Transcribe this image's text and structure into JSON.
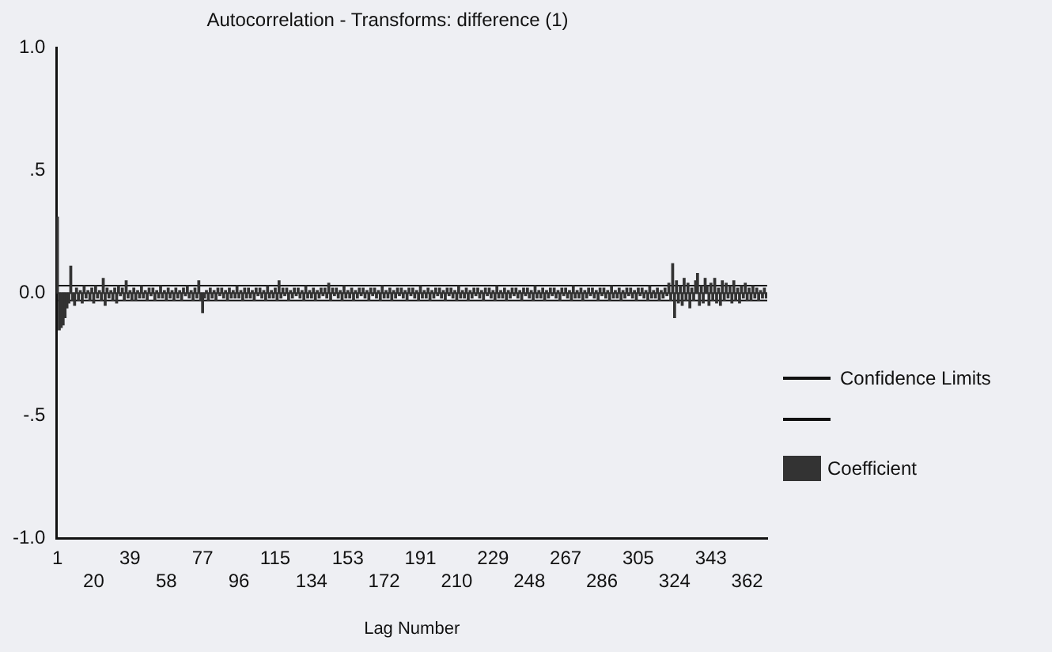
{
  "chart_data": {
    "type": "bar",
    "title": "Autocorrelation - Transforms: difference (1)",
    "xlabel": "Lag Number",
    "categories": [
      "1",
      null,
      null,
      null,
      null,
      null,
      null,
      null,
      null,
      null,
      null,
      null,
      null,
      null,
      null,
      null,
      null,
      null,
      null,
      "20",
      null,
      null,
      null,
      null,
      null,
      null,
      null,
      null,
      null,
      null,
      null,
      null,
      null,
      null,
      null,
      null,
      null,
      null,
      "39",
      null,
      null,
      null,
      null,
      null,
      null,
      null,
      null,
      null,
      null,
      null,
      null,
      null,
      null,
      null,
      null,
      null,
      null,
      "58",
      null,
      null,
      null,
      null,
      null,
      null,
      null,
      null,
      null,
      null,
      null,
      null,
      null,
      null,
      null,
      null,
      null,
      null,
      "77",
      null,
      null,
      null,
      null,
      null,
      null,
      null,
      null,
      null,
      null,
      null,
      null,
      null,
      null,
      null,
      null,
      null,
      null,
      "96",
      null,
      null,
      null,
      null,
      null,
      null,
      null,
      null,
      null,
      null,
      null,
      null,
      null,
      null,
      null,
      null,
      null,
      null,
      "115",
      null,
      null,
      null,
      null,
      null,
      null,
      null,
      null,
      null,
      null,
      null,
      null,
      null,
      null,
      null,
      null,
      null,
      null,
      "134",
      null,
      null,
      null,
      null,
      null,
      null,
      null,
      null,
      null,
      null,
      null,
      null,
      null,
      null,
      null,
      null,
      null,
      null,
      "153",
      null,
      null,
      null,
      null,
      null,
      null,
      null,
      null,
      null,
      null,
      null,
      null,
      null,
      null,
      null,
      null,
      null,
      null,
      "172",
      null,
      null,
      null,
      null,
      null,
      null,
      null,
      null,
      null,
      null,
      null,
      null,
      null,
      null,
      null,
      null,
      null,
      null,
      "191",
      null,
      null,
      null,
      null,
      null,
      null,
      null,
      null,
      null,
      null,
      null,
      null,
      null,
      null,
      null,
      null,
      null,
      null,
      "210",
      null,
      null,
      null,
      null,
      null,
      null,
      null,
      null,
      null,
      null,
      null,
      null,
      null,
      null,
      null,
      null,
      null,
      null,
      "229",
      null,
      null,
      null,
      null,
      null,
      null,
      null,
      null,
      null,
      null,
      null,
      null,
      null,
      null,
      null,
      null,
      null,
      null,
      "248",
      null,
      null,
      null,
      null,
      null,
      null,
      null,
      null,
      null,
      null,
      null,
      null,
      null,
      null,
      null,
      null,
      null,
      null,
      "267",
      null,
      null,
      null,
      null,
      null,
      null,
      null,
      null,
      null,
      null,
      null,
      null,
      null,
      null,
      null,
      null,
      null,
      null,
      "286",
      null,
      null,
      null,
      null,
      null,
      null,
      null,
      null,
      null,
      null,
      null,
      null,
      null,
      null,
      null,
      null,
      null,
      null,
      "305",
      null,
      null,
      null,
      null,
      null,
      null,
      null,
      null,
      null,
      null,
      null,
      null,
      null,
      null,
      null,
      null,
      null,
      null,
      "324",
      null,
      null,
      null,
      null,
      null,
      null,
      null,
      null,
      null,
      null,
      null,
      null,
      null,
      null,
      null,
      null,
      null,
      null,
      "343",
      null,
      null,
      null,
      null,
      null,
      null,
      null,
      null,
      null,
      null,
      null,
      null,
      null,
      null,
      null,
      null,
      null,
      null,
      "362",
      null,
      null,
      null,
      null,
      null,
      null,
      null,
      null,
      null,
      null
    ],
    "series": [
      {
        "name": "Coefficient",
        "color": "#333333",
        "values": [
          0.31,
          -0.15,
          -0.14,
          -0.13,
          -0.1,
          -0.06,
          -0.04,
          0.11,
          -0.03,
          -0.05,
          0.02,
          -0.03,
          0.01,
          -0.04,
          0.03,
          -0.02,
          0.01,
          -0.03,
          0.02,
          -0.04,
          0.03,
          -0.02,
          0.01,
          -0.03,
          0.06,
          -0.05,
          0.02,
          -0.02,
          0.01,
          -0.03,
          0.02,
          -0.04,
          0.03,
          -0.01,
          0.02,
          -0.03,
          0.05,
          -0.02,
          0.01,
          -0.03,
          0.02,
          -0.03,
          0.01,
          -0.02,
          0.03,
          -0.02,
          0.01,
          -0.03,
          0.02,
          -0.01,
          0.02,
          -0.03,
          0.01,
          -0.02,
          0.03,
          -0.02,
          0.01,
          -0.03,
          0.02,
          -0.02,
          0.01,
          -0.03,
          0.02,
          -0.02,
          0.01,
          -0.03,
          0.02,
          -0.01,
          0.03,
          -0.02,
          0.01,
          -0.03,
          0.02,
          -0.02,
          0.05,
          -0.03,
          -0.08,
          -0.02,
          0.01,
          -0.03,
          0.02,
          -0.02,
          0.01,
          -0.03,
          0.02,
          -0.01,
          0.02,
          -0.02,
          0.01,
          -0.03,
          0.02,
          -0.02,
          0.01,
          -0.02,
          0.03,
          -0.02,
          0.01,
          -0.03,
          0.02,
          -0.02,
          0.02,
          -0.02,
          0.01,
          -0.03,
          0.02,
          -0.01,
          0.02,
          -0.02,
          0.01,
          -0.03,
          0.03,
          -0.02,
          0.01,
          -0.02,
          0.02,
          -0.03,
          0.05,
          -0.02,
          0.02,
          -0.01,
          0.02,
          -0.03,
          0.01,
          -0.02,
          0.02,
          -0.01,
          0.02,
          -0.02,
          0.01,
          -0.03,
          0.03,
          -0.02,
          0.01,
          -0.02,
          0.02,
          -0.03,
          0.01,
          -0.02,
          0.02,
          -0.01,
          0.02,
          -0.02,
          0.04,
          -0.03,
          0.02,
          -0.01,
          0.02,
          -0.02,
          0.01,
          -0.03,
          0.03,
          -0.02,
          0.01,
          -0.02,
          0.02,
          -0.03,
          0.01,
          -0.02,
          0.02,
          -0.01,
          0.02,
          -0.02,
          0.01,
          -0.03,
          0.02,
          -0.01,
          0.02,
          -0.02,
          0.01,
          -0.03,
          0.03,
          -0.02,
          0.01,
          -0.02,
          0.02,
          -0.03,
          0.01,
          -0.02,
          0.02,
          -0.01,
          0.02,
          -0.02,
          0.01,
          -0.03,
          0.02,
          -0.01,
          0.02,
          -0.02,
          0.01,
          -0.03,
          0.03,
          -0.02,
          0.01,
          -0.02,
          0.02,
          -0.03,
          0.01,
          -0.02,
          0.02,
          -0.01,
          0.02,
          -0.02,
          0.01,
          -0.03,
          0.02,
          -0.01,
          0.02,
          -0.02,
          0.01,
          -0.03,
          0.03,
          -0.02,
          0.01,
          -0.02,
          0.02,
          -0.03,
          0.01,
          -0.02,
          0.02,
          -0.01,
          0.02,
          -0.02,
          0.01,
          -0.03,
          0.02,
          -0.01,
          0.02,
          -0.02,
          0.01,
          -0.03,
          0.03,
          -0.02,
          0.01,
          -0.02,
          0.02,
          -0.03,
          0.01,
          -0.02,
          0.02,
          -0.01,
          0.02,
          -0.02,
          0.01,
          -0.03,
          0.02,
          -0.01,
          0.02,
          -0.02,
          0.01,
          -0.03,
          0.03,
          -0.02,
          0.01,
          -0.02,
          0.02,
          -0.03,
          0.01,
          -0.02,
          0.02,
          -0.01,
          0.02,
          -0.02,
          0.01,
          -0.03,
          0.02,
          -0.01,
          0.02,
          -0.02,
          0.01,
          -0.03,
          0.03,
          -0.02,
          0.01,
          -0.02,
          0.02,
          -0.03,
          0.01,
          -0.02,
          0.02,
          -0.01,
          0.02,
          -0.02,
          0.01,
          -0.03,
          0.02,
          -0.01,
          0.02,
          -0.02,
          0.01,
          -0.03,
          0.03,
          -0.02,
          0.01,
          -0.02,
          0.02,
          -0.03,
          0.01,
          -0.02,
          0.02,
          -0.01,
          0.02,
          -0.02,
          0.01,
          -0.03,
          0.02,
          -0.01,
          0.02,
          -0.02,
          0.01,
          -0.03,
          0.03,
          -0.02,
          0.01,
          -0.02,
          0.02,
          -0.03,
          0.01,
          -0.02,
          0.02,
          -0.01,
          0.04,
          -0.03,
          0.12,
          -0.1,
          0.05,
          -0.04,
          0.03,
          -0.05,
          0.06,
          -0.03,
          0.04,
          -0.06,
          0.02,
          -0.03,
          0.05,
          0.08,
          -0.05,
          0.03,
          -0.04,
          0.06,
          0.03,
          -0.05,
          0.04,
          -0.03,
          0.06,
          -0.04,
          0.02,
          -0.05,
          0.05,
          -0.03,
          0.04,
          -0.02,
          0.03,
          -0.04,
          0.05,
          -0.03,
          0.02,
          -0.04,
          0.03,
          -0.02,
          0.04,
          -0.03,
          0.02,
          -0.03,
          0.03,
          -0.02,
          0.02,
          -0.03,
          0.01,
          -0.02,
          0.02,
          -0.02
        ]
      }
    ],
    "ylim": [
      -1,
      1
    ],
    "yticks": [
      {
        "value": -1,
        "label": "-1.0"
      },
      {
        "value": -0.5,
        "label": "-.5"
      },
      {
        "value": 0,
        "label": "0.0"
      },
      {
        "value": 0.5,
        "label": ".5"
      },
      {
        "value": 1,
        "label": "1.0"
      }
    ],
    "ref_lines": [
      {
        "axis": "y",
        "value": 0.03,
        "label": "Confidence Limits",
        "color": "#111111"
      },
      {
        "axis": "y",
        "value": -0.03,
        "color": "#111111"
      },
      {
        "axis": "y",
        "value": 0,
        "color": "#111111"
      }
    ],
    "grid": false,
    "legend": "right"
  }
}
